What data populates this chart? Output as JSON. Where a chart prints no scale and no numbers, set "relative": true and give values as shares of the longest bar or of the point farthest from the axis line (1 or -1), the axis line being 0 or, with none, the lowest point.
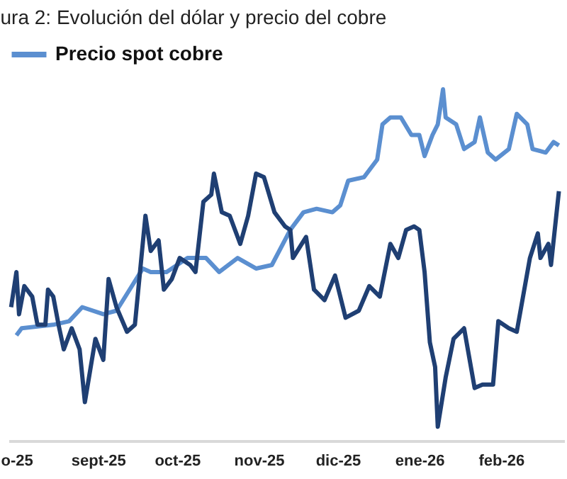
{
  "chart_data": {
    "type": "line",
    "title": "ura 2: Evolución del dólar y precio del cobre",
    "relative": true,
    "legend": "top",
    "xlim": [
      "2025-07-29",
      "2026-02-25"
    ],
    "xticks": [
      {
        "value": "2025-08-01",
        "label": "o-25"
      },
      {
        "value": "2025-09-01",
        "label": "sept-25"
      },
      {
        "value": "2025-10-01",
        "label": "oct-25"
      },
      {
        "value": "2025-11-01",
        "label": "nov-25"
      },
      {
        "value": "2025-12-01",
        "label": "dic-25"
      },
      {
        "value": "2026-01-01",
        "label": "ene-26"
      },
      {
        "value": "2026-02-01",
        "label": "feb-26"
      }
    ],
    "series": [
      {
        "name": "Precio spot cobre",
        "color": "#5b8fd0",
        "x": [
          "2025-08-01",
          "2025-08-03",
          "2025-08-15",
          "2025-08-21",
          "2025-08-26",
          "2025-09-03",
          "2025-09-08",
          "2025-09-13",
          "2025-09-18",
          "2025-09-21",
          "2025-09-27",
          "2025-10-05",
          "2025-10-12",
          "2025-10-17",
          "2025-10-24",
          "2025-10-31",
          "2025-11-06",
          "2025-11-13",
          "2025-11-18",
          "2025-11-23",
          "2025-11-29",
          "2025-12-02",
          "2025-12-05",
          "2025-12-11",
          "2025-12-16",
          "2025-12-18",
          "2025-12-21",
          "2025-12-25",
          "2025-12-29",
          "2026-01-01",
          "2026-01-03",
          "2026-01-06",
          "2026-01-08",
          "2026-01-10",
          "2026-01-11",
          "2026-01-15",
          "2026-01-18",
          "2026-01-22",
          "2026-01-24",
          "2026-01-27",
          "2026-01-30",
          "2026-02-04",
          "2026-02-07",
          "2026-02-11",
          "2026-02-13",
          "2026-02-18",
          "2026-02-21",
          "2026-02-23"
        ],
        "values": [
          0.3,
          0.32,
          0.33,
          0.34,
          0.38,
          0.36,
          0.37,
          0.43,
          0.49,
          0.48,
          0.48,
          0.52,
          0.52,
          0.48,
          0.52,
          0.49,
          0.5,
          0.6,
          0.65,
          0.66,
          0.65,
          0.67,
          0.74,
          0.75,
          0.8,
          0.9,
          0.92,
          0.92,
          0.87,
          0.87,
          0.81,
          0.87,
          0.9,
          1.0,
          0.92,
          0.9,
          0.83,
          0.85,
          0.92,
          0.82,
          0.8,
          0.83,
          0.93,
          0.9,
          0.83,
          0.82,
          0.85,
          0.84
        ]
      },
      {
        "color": "#1f3f73",
        "x": [
          "2025-07-30",
          "2025-08-01",
          "2025-08-02",
          "2025-08-04",
          "2025-08-07",
          "2025-08-09",
          "2025-08-12",
          "2025-08-13",
          "2025-08-15",
          "2025-08-17",
          "2025-08-19",
          "2025-08-22",
          "2025-08-25",
          "2025-08-27",
          "2025-08-31",
          "2025-09-03",
          "2025-09-05",
          "2025-09-08",
          "2025-09-12",
          "2025-09-15",
          "2025-09-19",
          "2025-09-21",
          "2025-09-24",
          "2025-09-26",
          "2025-09-29",
          "2025-10-02",
          "2025-10-06",
          "2025-10-08",
          "2025-10-11",
          "2025-10-14",
          "2025-10-15",
          "2025-10-18",
          "2025-10-21",
          "2025-10-25",
          "2025-10-28",
          "2025-10-31",
          "2025-11-03",
          "2025-11-07",
          "2025-11-11",
          "2025-11-13",
          "2025-11-14",
          "2025-11-19",
          "2025-11-22",
          "2025-11-26",
          "2025-11-30",
          "2025-12-04",
          "2025-12-09",
          "2025-12-13",
          "2025-12-17",
          "2025-12-21",
          "2025-12-24",
          "2025-12-27",
          "2025-12-30",
          "2026-01-01",
          "2026-01-03",
          "2026-01-05",
          "2026-01-07",
          "2026-01-08",
          "2026-01-11",
          "2026-01-14",
          "2026-01-18",
          "2026-01-22",
          "2026-01-25",
          "2026-01-29",
          "2026-01-31",
          "2026-02-04",
          "2026-02-07",
          "2026-02-12",
          "2026-02-15",
          "2026-02-16",
          "2026-02-19",
          "2026-02-20",
          "2026-02-23"
        ],
        "values": [
          0.38,
          0.48,
          0.36,
          0.44,
          0.41,
          0.33,
          0.33,
          0.43,
          0.41,
          0.33,
          0.26,
          0.32,
          0.26,
          0.11,
          0.29,
          0.23,
          0.46,
          0.38,
          0.31,
          0.33,
          0.64,
          0.54,
          0.57,
          0.43,
          0.46,
          0.52,
          0.5,
          0.48,
          0.68,
          0.7,
          0.76,
          0.65,
          0.64,
          0.56,
          0.64,
          0.76,
          0.75,
          0.65,
          0.61,
          0.6,
          0.52,
          0.58,
          0.43,
          0.4,
          0.47,
          0.35,
          0.37,
          0.44,
          0.41,
          0.56,
          0.52,
          0.6,
          0.61,
          0.6,
          0.48,
          0.28,
          0.21,
          0.04,
          0.18,
          0.29,
          0.32,
          0.15,
          0.16,
          0.16,
          0.34,
          0.32,
          0.31,
          0.52,
          0.59,
          0.52,
          0.56,
          0.5,
          0.71
        ]
      }
    ]
  }
}
